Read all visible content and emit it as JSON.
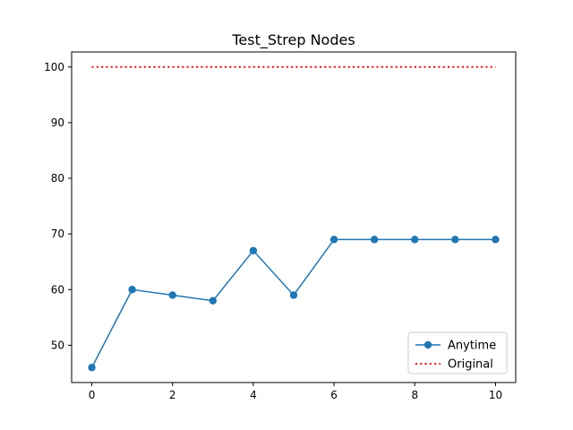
{
  "chart_data": {
    "type": "line",
    "title": "Test_Strep Nodes",
    "xlabel": "",
    "ylabel": "",
    "x": [
      0,
      1,
      2,
      3,
      4,
      5,
      6,
      7,
      8,
      9,
      10
    ],
    "xlim": [
      -0.5,
      10.5
    ],
    "ylim": [
      43.3,
      102.7
    ],
    "xticks": [
      0,
      2,
      4,
      6,
      8,
      10
    ],
    "yticks": [
      50,
      60,
      70,
      80,
      90,
      100
    ],
    "grid": false,
    "legend_position": "lower-right",
    "series": [
      {
        "name": "Anytime",
        "values": [
          46,
          60,
          59,
          58,
          67,
          59,
          69,
          69,
          69,
          69,
          69
        ],
        "color": "#1f77b4",
        "style": "solid",
        "marker": "circle"
      },
      {
        "name": "Original",
        "values": [
          100,
          100,
          100,
          100,
          100,
          100,
          100,
          100,
          100,
          100,
          100
        ],
        "color": "#ff0000",
        "style": "dotted",
        "marker": "none"
      }
    ]
  }
}
